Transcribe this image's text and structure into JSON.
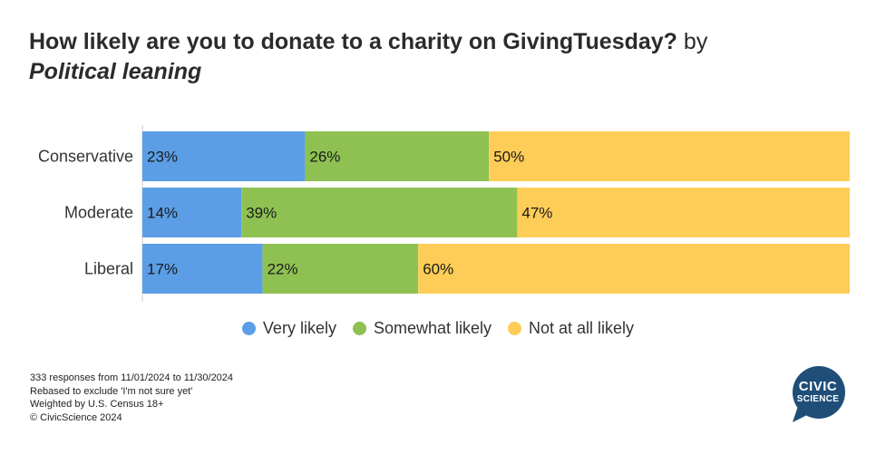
{
  "title": {
    "bold": "How likely are you to donate to a charity on GivingTuesday?",
    "by": " by",
    "italic": "Political leaning"
  },
  "chart_data": {
    "type": "bar",
    "orientation": "horizontal",
    "stacked": true,
    "categories": [
      "Conservative",
      "Moderate",
      "Liberal"
    ],
    "series": [
      {
        "name": "Very likely",
        "values": [
          23,
          14,
          17
        ],
        "labels": [
          "23%",
          "14%",
          "17%"
        ],
        "color": "#5b9ee6"
      },
      {
        "name": "Somewhat likely",
        "values": [
          26,
          39,
          22
        ],
        "labels": [
          "26%",
          "39%",
          "22%"
        ],
        "color": "#8fc152"
      },
      {
        "name": "Not at all likely",
        "values": [
          50,
          47,
          60
        ],
        "labels": [
          "50%",
          "47%",
          "60%"
        ],
        "color": "#fecd57"
      }
    ],
    "xlim": [
      0,
      100
    ],
    "legend_position": "bottom",
    "grid": false
  },
  "footer": {
    "line1": "333 responses from 11/01/2024 to 11/30/2024",
    "line2": "Rebased to exclude 'I'm not sure yet'",
    "line3": "Weighted by U.S. Census 18+",
    "line4": "© CivicScience 2024"
  },
  "logo": {
    "line1": "CIVIC",
    "line2": "SCIENCE",
    "color": "#1f4e79"
  }
}
